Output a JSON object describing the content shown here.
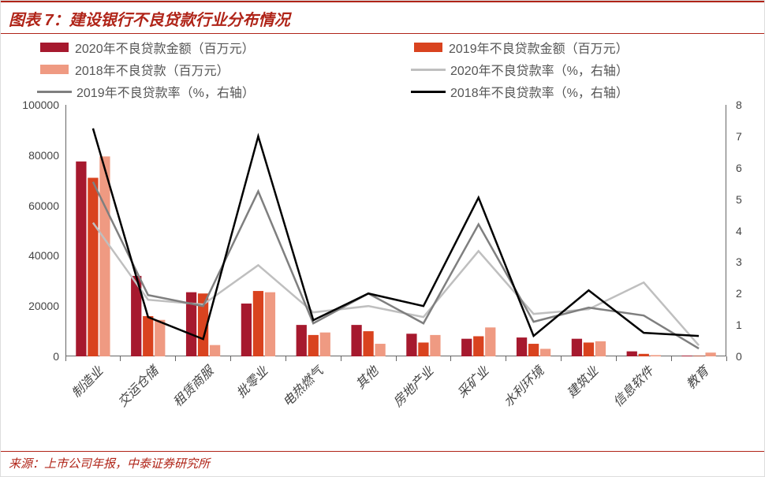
{
  "title": "图表 7：建设银行不良贷款行业分布情况",
  "source": "来源：上市公司年报，中泰证券研究所",
  "legend": {
    "b2020": "2020年不良贷款金额（百万元）",
    "b2019": "2019年不良贷款金额（百万元）",
    "b2018": "2018年不良贷款（百万元）",
    "l2020": "2020年不良贷款率（%，右轴）",
    "l2019": "2019年不良贷款率（%，右轴）",
    "l2018": "2018年不良贷款率（%，右轴）"
  },
  "chart": {
    "type": "bar+line",
    "background_color": "#ffffff",
    "categories": [
      "制造业",
      "交运仓储",
      "租赁商服",
      "批零业",
      "电热燃气",
      "其他",
      "房地产业",
      "采矿业",
      "水利环境",
      "建筑业",
      "信息软件",
      "教育"
    ],
    "bar_series": [
      {
        "key": "b2020",
        "color": "#a6192e",
        "values": [
          77500,
          32000,
          25500,
          21000,
          12500,
          12500,
          9000,
          7000,
          7500,
          7000,
          2000,
          300
        ]
      },
      {
        "key": "b2019",
        "color": "#d9431f",
        "values": [
          71000,
          16000,
          25000,
          26000,
          8500,
          10000,
          5500,
          8000,
          5000,
          5500,
          1000,
          200
        ]
      },
      {
        "key": "b2018",
        "color": "#ef9a82",
        "values": [
          79500,
          14500,
          4500,
          25500,
          9500,
          5000,
          8500,
          11500,
          3000,
          6000,
          500,
          1500
        ]
      }
    ],
    "line_series": [
      {
        "key": "l2020",
        "color": "#bfbfbf",
        "width": 2.5,
        "values": [
          4.25,
          1.8,
          1.65,
          2.9,
          1.4,
          1.6,
          1.25,
          3.35,
          1.35,
          1.5,
          2.35,
          0.35
        ]
      },
      {
        "key": "l2019",
        "color": "#7f7f7f",
        "width": 2.5,
        "values": [
          5.55,
          1.95,
          1.6,
          5.25,
          1.05,
          2.0,
          1.05,
          4.2,
          1.1,
          1.55,
          1.3,
          0.25
        ]
      },
      {
        "key": "l2018",
        "color": "#000000",
        "width": 2.5,
        "values": [
          7.25,
          1.25,
          0.55,
          7.0,
          1.15,
          2.0,
          1.6,
          5.05,
          0.65,
          2.1,
          0.75,
          0.65
        ]
      }
    ],
    "y_left": {
      "min": 0,
      "max": 100000,
      "step": 20000,
      "fontsize": 14,
      "color": "#444444"
    },
    "y_right": {
      "min": 0,
      "max": 8,
      "step": 1,
      "fontsize": 14,
      "color": "#444444"
    },
    "bar_group_width": 0.62,
    "bar_gap": 0.04,
    "axis_color": "#666666",
    "label_fontsize": 16,
    "label_color": "#444444",
    "label_rotation_deg": -45
  }
}
